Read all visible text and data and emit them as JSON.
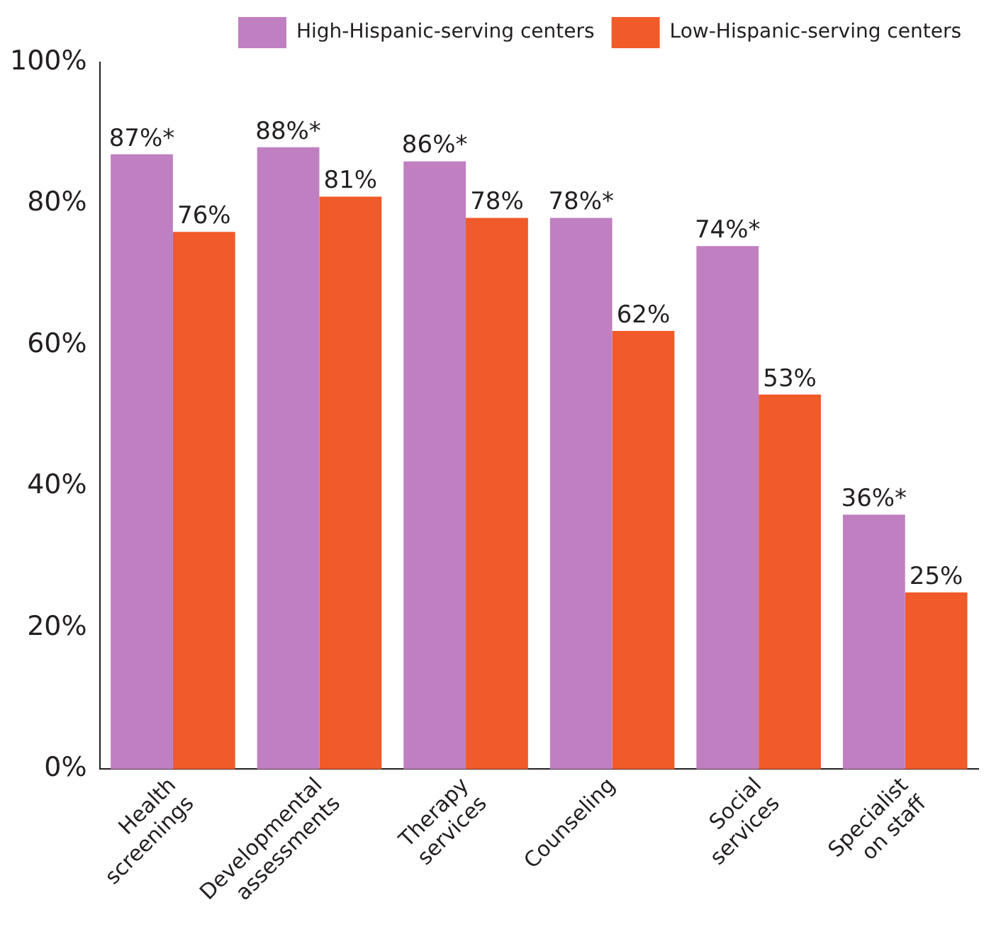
{
  "chart_data": {
    "type": "bar",
    "categories": [
      "Health screenings",
      "Developmental assessments",
      "Therapy services",
      "Counseling",
      "Social services",
      "Specialist on staff"
    ],
    "series": [
      {
        "name": "High-Hispanic-serving centers",
        "color": "#c07fc0",
        "values": [
          87,
          88,
          86,
          78,
          74,
          36
        ],
        "value_labels": [
          "87%*",
          "88%*",
          "86%*",
          "78%*",
          "74%*",
          "36%*"
        ]
      },
      {
        "name": "Low-Hispanic-serving centers",
        "color": "#f15a29",
        "values": [
          76,
          81,
          78,
          62,
          53,
          25
        ],
        "value_labels": [
          "76%",
          "81%",
          "78%",
          "62%",
          "53%",
          "25%"
        ]
      }
    ],
    "ylim": [
      0,
      100
    ],
    "yticks": [
      {
        "value": 0,
        "label": "0%"
      },
      {
        "value": 20,
        "label": "20%"
      },
      {
        "value": 40,
        "label": "40%"
      },
      {
        "value": 60,
        "label": "60%"
      },
      {
        "value": 80,
        "label": "80%"
      },
      {
        "value": 100,
        "label": "100%"
      }
    ],
    "grid": false,
    "legend": "top right"
  }
}
